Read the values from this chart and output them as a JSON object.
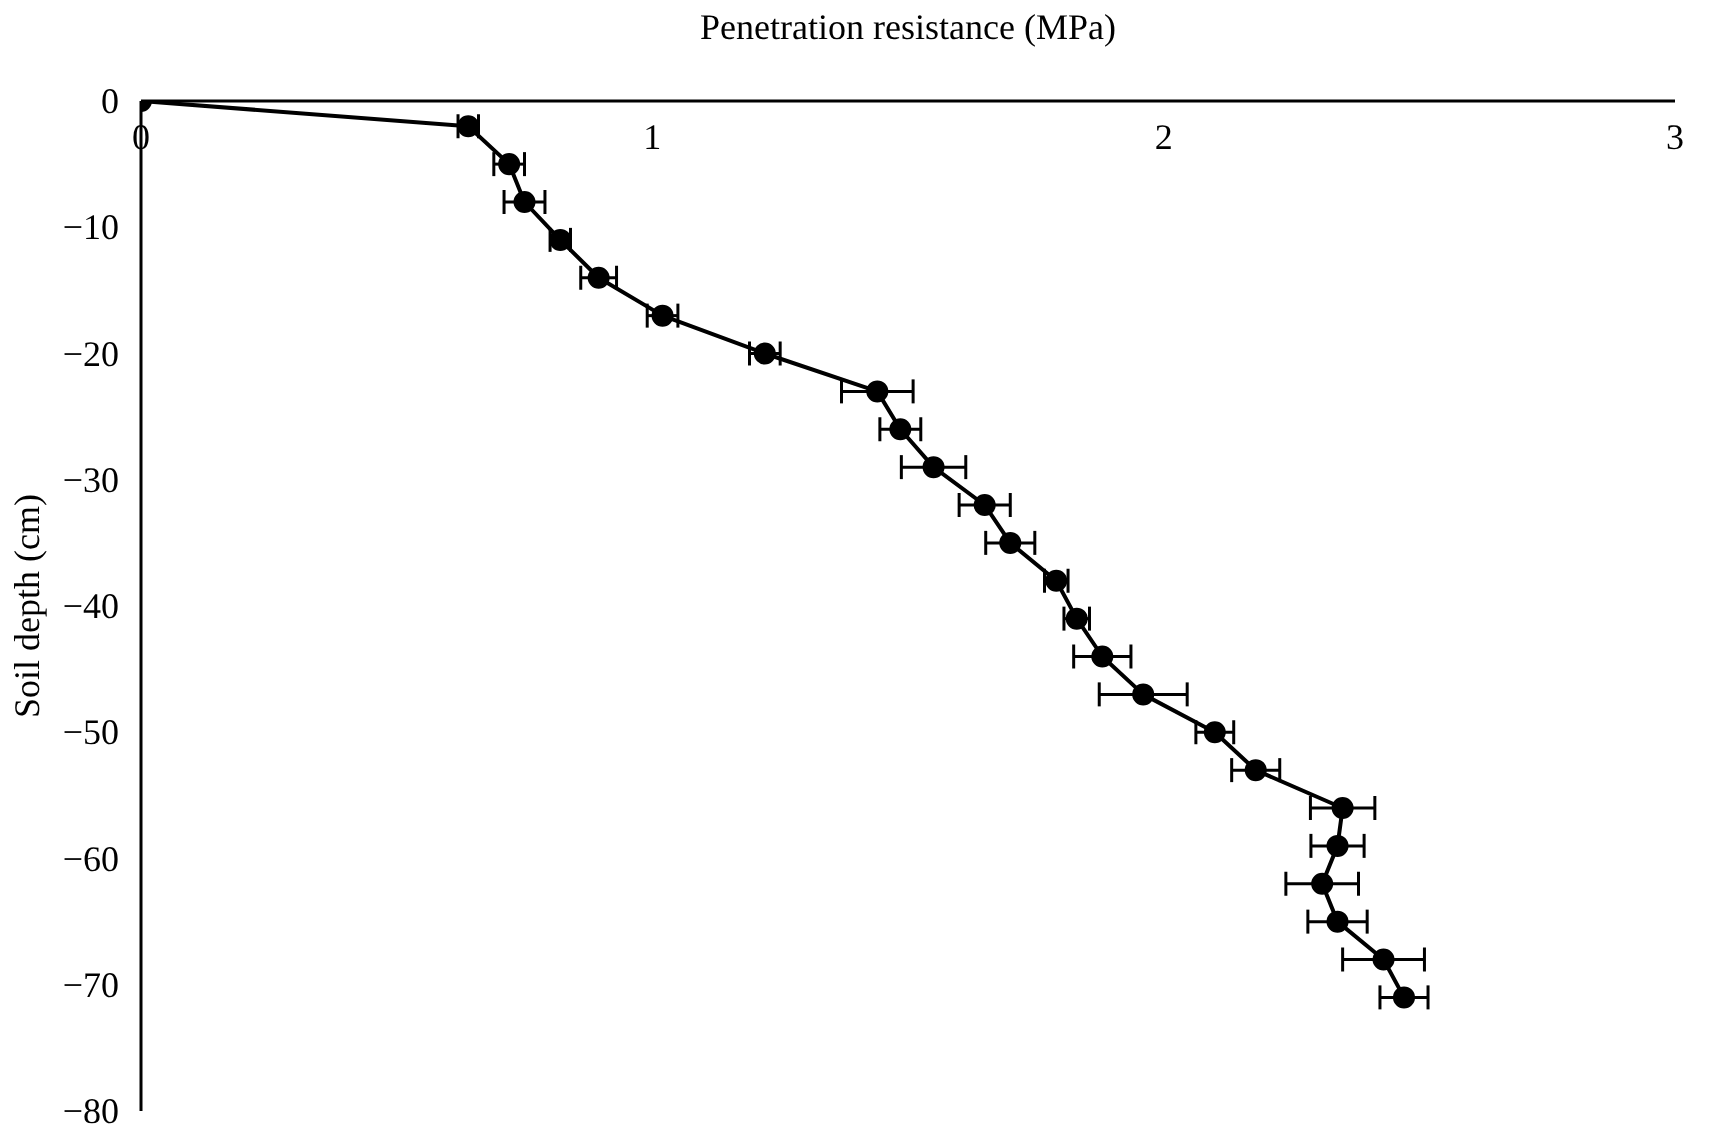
{
  "chart_data": {
    "type": "line",
    "xlabel": "Penetration resistance (MPa)",
    "ylabel": "Soil depth (cm)",
    "x": [
      0,
      0.64,
      0.72,
      0.75,
      0.82,
      0.895,
      1.02,
      1.22,
      1.44,
      1.485,
      1.55,
      1.65,
      1.7,
      1.79,
      1.83,
      1.88,
      1.96,
      2.1,
      2.18,
      2.35,
      2.34,
      2.31,
      2.34,
      2.43,
      2.47
    ],
    "values": [
      0,
      -2,
      -5,
      -8,
      -11,
      -14,
      -17,
      -20,
      -23,
      -26,
      -29,
      -32,
      -35,
      -38,
      -41,
      -44,
      -47,
      -50,
      -53,
      -56,
      -59,
      -62,
      -65,
      -68,
      -71
    ],
    "xerrors": [
      null,
      0.02,
      0.03,
      0.04,
      0.02,
      0.035,
      0.03,
      0.03,
      0.07,
      0.04,
      0.063,
      0.05,
      0.048,
      0.023,
      0.025,
      0.056,
      0.086,
      0.037,
      0.047,
      0.063,
      0.052,
      0.071,
      0.058,
      0.08,
      0.047
    ],
    "color": "#000000",
    "marker": "circle",
    "line_style": "solid",
    "grid": false,
    "xlim": [
      0,
      3
    ],
    "xticks": [
      0,
      1,
      2,
      3
    ],
    "ylim": [
      -80,
      0
    ],
    "yticks": [
      0,
      -10,
      -20,
      -30,
      -40,
      -50,
      -60,
      -70,
      -80
    ]
  }
}
